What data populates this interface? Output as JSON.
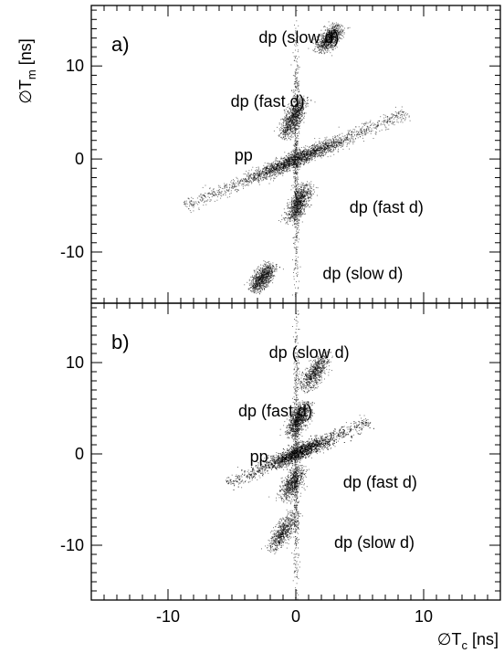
{
  "chart_data": [
    {
      "type": "scatter",
      "panel_label": "a)",
      "xlim": [
        -16,
        16
      ],
      "ylim": [
        -15.5,
        16.5
      ],
      "xlabel": "",
      "ylabel": "∅T",
      "ylabel_sub": "m",
      "ylabel_unit": " [ns]",
      "x_ticks": [
        -10,
        0,
        10
      ],
      "y_ticks": [
        10,
        0,
        -10
      ],
      "y_tick_labels": [
        "10",
        "0",
        "-10"
      ],
      "x_tick_labels": [],
      "grid": false,
      "annotations": [
        {
          "text": "dp (slow d)",
          "x": -2.9,
          "y": 12.5
        },
        {
          "text": "dp (fast d)",
          "x": -5.1,
          "y": 5.6
        },
        {
          "text": "pp",
          "x": -4.8,
          "y": -0.2
        },
        {
          "text": "dp (fast d)",
          "x": 4.2,
          "y": -5.8
        },
        {
          "text": "dp (slow d)",
          "x": 2.1,
          "y": -12.9
        }
      ],
      "series": [
        {
          "x0": 0,
          "y0": 0,
          "sx": 0.9,
          "sy": 0.6,
          "dx": 1.0,
          "dy": 0.58,
          "len": [
            -10,
            10
          ],
          "density": "high"
        },
        {
          "x0": -0.2,
          "y0": 4.5,
          "dx": 0.35,
          "dy": 1.0,
          "len": [
            -2.5,
            2.5
          ],
          "density": "medium"
        },
        {
          "x0": 0.2,
          "y0": -4.7,
          "dx": 0.35,
          "dy": 1.0,
          "len": [
            -2.5,
            2.5
          ],
          "density": "medium"
        },
        {
          "x0": 2.6,
          "y0": 13,
          "dx": 0.5,
          "dy": 1.0,
          "len": [
            -1.8,
            1.8
          ],
          "density": "medium"
        },
        {
          "x0": -2.6,
          "y0": -12.7,
          "dx": 0.5,
          "dy": 1.0,
          "len": [
            -1.8,
            1.8
          ],
          "density": "medium"
        },
        {
          "x0": 0,
          "y0": 0,
          "dx": 0.0,
          "dy": 1.0,
          "len": [
            -15,
            16
          ],
          "density": "low"
        }
      ]
    },
    {
      "type": "scatter",
      "panel_label": "b)",
      "xlim": [
        -16,
        16
      ],
      "ylim": [
        -16,
        16.5
      ],
      "xlabel": "∅T",
      "xlabel_sub": "c",
      "xlabel_unit": " [ns]",
      "ylabel": "",
      "x_ticks": [
        -10,
        0,
        10
      ],
      "y_ticks": [
        10,
        0,
        -10
      ],
      "x_tick_labels": [
        "-10",
        "0",
        "10"
      ],
      "y_tick_labels": [
        "10",
        "0",
        "-10"
      ],
      "grid": false,
      "annotations": [
        {
          "text": "dp (slow d)",
          "x": -2.1,
          "y": 10.5
        },
        {
          "text": "dp (fast d)",
          "x": -4.5,
          "y": 4.1
        },
        {
          "text": "pp",
          "x": -3.6,
          "y": -0.9
        },
        {
          "text": "dp (fast d)",
          "x": 3.7,
          "y": -3.7
        },
        {
          "text": "dp (slow d)",
          "x": 3.0,
          "y": -10.3
        }
      ],
      "series": [
        {
          "x0": 0.2,
          "y0": 0.2,
          "sx": 0.9,
          "sy": 0.6,
          "dx": 1.0,
          "dy": 0.62,
          "len": [
            -6.5,
            6.5
          ],
          "density": "high"
        },
        {
          "x0": 0.2,
          "y0": 3.8,
          "dx": 0.35,
          "dy": 1.0,
          "len": [
            -2.2,
            2.2
          ],
          "density": "medium"
        },
        {
          "x0": -0.3,
          "y0": -3.2,
          "dx": 0.35,
          "dy": 1.0,
          "len": [
            -2.2,
            2.2
          ],
          "density": "low"
        },
        {
          "x0": 1.5,
          "y0": 9.0,
          "dx": 0.45,
          "dy": 1.0,
          "len": [
            -2.5,
            2.5
          ],
          "density": "low"
        },
        {
          "x0": -1.0,
          "y0": -8.5,
          "dx": 0.45,
          "dy": 1.0,
          "len": [
            -2.5,
            2.5
          ],
          "density": "low"
        },
        {
          "x0": 0,
          "y0": 0,
          "dx": 0.0,
          "dy": 1.0,
          "len": [
            -16,
            16
          ],
          "density": "low"
        }
      ]
    }
  ]
}
